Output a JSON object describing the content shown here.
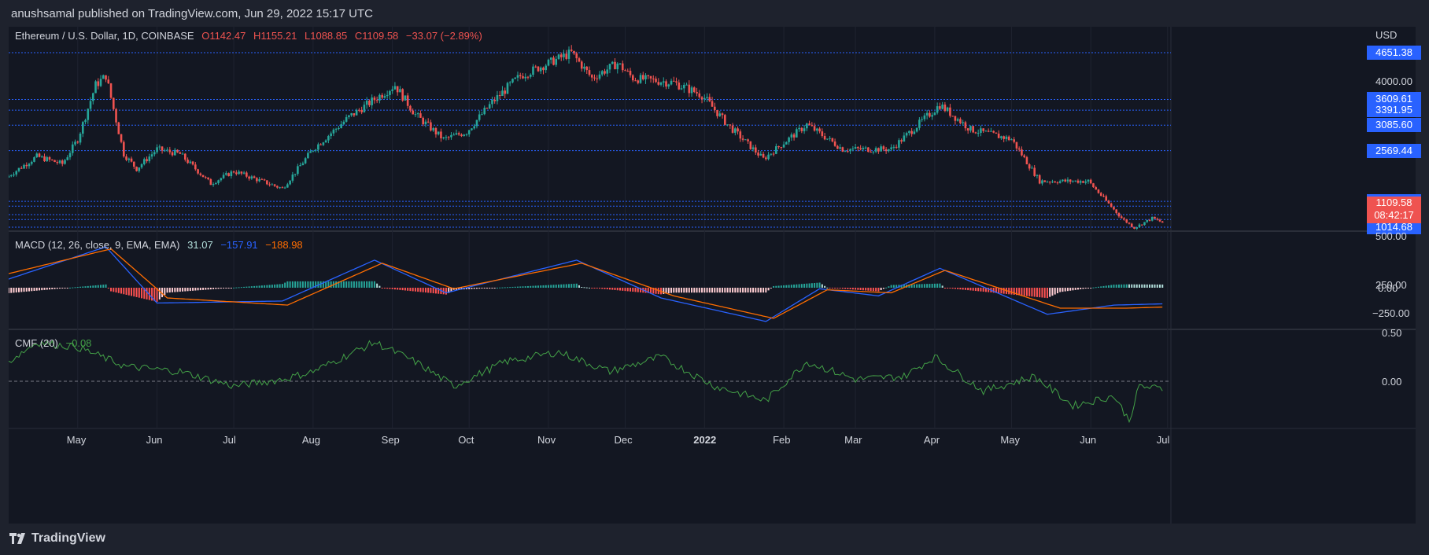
{
  "publisher": "anushsamal published on TradingView.com, Jun 29, 2022 15:17 UTC",
  "brand": "TradingView",
  "currency": "USD",
  "legend": {
    "symbol": "Ethereum / U.S. Dollar, 1D, COINBASE",
    "open": "O1142.47",
    "high": "H1155.21",
    "low": "L1088.85",
    "close": "C1109.58",
    "change": "−33.07 (−2.89%)"
  },
  "macd_legend": {
    "name": "MACD (12, 26, close, 9, EMA, EMA)",
    "hist": "31.07",
    "macd": "−157.91",
    "signal": "−188.98"
  },
  "cmf_legend": {
    "name": "CMF (20)",
    "value": "−0.08"
  },
  "price_levels": [
    "4651.38",
    "3609.61",
    "3391.95",
    "3085.60",
    "2569.44",
    "1540.14",
    "1441.81",
    "1271.02",
    "1169.94",
    "1014.68"
  ],
  "price_axis": {
    "label_4000": "4000.00"
  },
  "last_price": {
    "value": "1109.58",
    "countdown": "08:42:17"
  },
  "macd_axis": [
    "500.00",
    "250.00",
    "0.00",
    "−250.00"
  ],
  "cmf_axis": [
    "0.50",
    "0.00"
  ],
  "x_ticks": [
    "May",
    "Jun",
    "Jul",
    "Aug",
    "Sep",
    "Oct",
    "Nov",
    "Dec",
    "2022",
    "Feb",
    "Mar",
    "Apr",
    "May",
    "Jun",
    "Jul"
  ],
  "colors": {
    "up": "#26a69a",
    "down": "#ef5350",
    "macd": "#2962ff",
    "signal": "#ff6d00",
    "cmf": "#43a047",
    "levels": "#2962ff",
    "bg": "#131722",
    "frame": "#1e222d"
  },
  "chart_data": {
    "type": "candlestick",
    "title": "Ethereum / U.S. Dollar, 1D, COINBASE",
    "ylabel": "USD",
    "x_range": [
      "2021-04-04",
      "2022-07-02"
    ],
    "price_approx": [
      [
        "2021-04-01",
        1950
      ],
      [
        "2021-04-15",
        2450
      ],
      [
        "2021-04-25",
        2300
      ],
      [
        "2021-05-01",
        2800
      ],
      [
        "2021-05-08",
        3900
      ],
      [
        "2021-05-12",
        4100
      ],
      [
        "2021-05-19",
        2500
      ],
      [
        "2021-05-24",
        2200
      ],
      [
        "2021-06-01",
        2600
      ],
      [
        "2021-06-10",
        2500
      ],
      [
        "2021-06-22",
        1900
      ],
      [
        "2021-07-01",
        2150
      ],
      [
        "2021-07-20",
        1800
      ],
      [
        "2021-08-01",
        2600
      ],
      [
        "2021-08-15",
        3250
      ],
      [
        "2021-09-02",
        3900
      ],
      [
        "2021-09-10",
        3300
      ],
      [
        "2021-09-21",
        2800
      ],
      [
        "2021-09-30",
        2950
      ],
      [
        "2021-10-10",
        3550
      ],
      [
        "2021-10-21",
        4100
      ],
      [
        "2021-11-10",
        4651
      ],
      [
        "2021-11-18",
        4050
      ],
      [
        "2021-11-28",
        4400
      ],
      [
        "2021-12-04",
        4050
      ],
      [
        "2021-12-20",
        3950
      ],
      [
        "2021-12-31",
        3700
      ],
      [
        "2022-01-10",
        3100
      ],
      [
        "2022-01-24",
        2400
      ],
      [
        "2022-02-10",
        3100
      ],
      [
        "2022-02-24",
        2600
      ],
      [
        "2022-03-15",
        2600
      ],
      [
        "2022-04-03",
        3500
      ],
      [
        "2022-04-15",
        3000
      ],
      [
        "2022-05-01",
        2800
      ],
      [
        "2022-05-12",
        1950
      ],
      [
        "2022-05-31",
        1950
      ],
      [
        "2022-06-13",
        1200
      ],
      [
        "2022-06-18",
        1000
      ],
      [
        "2022-06-25",
        1200
      ],
      [
        "2022-06-29",
        1109.58
      ]
    ],
    "macd_approx": [
      [
        "2021-04-01",
        60
      ],
      [
        "2021-05-12",
        400
      ],
      [
        "2021-06-01",
        -150
      ],
      [
        "2021-07-20",
        -130
      ],
      [
        "2021-08-25",
        270
      ],
      [
        "2021-09-22",
        -50
      ],
      [
        "2021-11-12",
        270
      ],
      [
        "2021-12-15",
        -100
      ],
      [
        "2022-01-25",
        -330
      ],
      [
        "2022-02-15",
        -10
      ],
      [
        "2022-03-10",
        -80
      ],
      [
        "2022-04-03",
        190
      ],
      [
        "2022-05-15",
        -260
      ],
      [
        "2022-06-10",
        -170
      ],
      [
        "2022-06-29",
        -157.91
      ]
    ],
    "signal_approx": [
      [
        "2021-04-01",
        120
      ],
      [
        "2021-05-14",
        380
      ],
      [
        "2021-06-05",
        -100
      ],
      [
        "2021-07-22",
        -170
      ],
      [
        "2021-08-28",
        240
      ],
      [
        "2021-09-25",
        -10
      ],
      [
        "2021-11-14",
        240
      ],
      [
        "2021-12-20",
        -80
      ],
      [
        "2022-01-28",
        -300
      ],
      [
        "2022-02-18",
        -20
      ],
      [
        "2022-03-15",
        -50
      ],
      [
        "2022-04-05",
        170
      ],
      [
        "2022-05-20",
        -200
      ],
      [
        "2022-06-15",
        -200
      ],
      [
        "2022-06-29",
        -188.98
      ]
    ],
    "cmf_approx": [
      [
        "2021-04-01",
        0.15
      ],
      [
        "2021-04-15",
        0.4
      ],
      [
        "2021-05-01",
        0.35
      ],
      [
        "2021-05-20",
        0.15
      ],
      [
        "2021-06-10",
        0.1
      ],
      [
        "2021-07-01",
        -0.05
      ],
      [
        "2021-07-20",
        0.02
      ],
      [
        "2021-08-01",
        0.1
      ],
      [
        "2021-08-25",
        0.4
      ],
      [
        "2021-09-10",
        0.2
      ],
      [
        "2021-09-25",
        -0.05
      ],
      [
        "2021-10-15",
        0.2
      ],
      [
        "2021-11-05",
        0.3
      ],
      [
        "2021-11-25",
        0.1
      ],
      [
        "2021-12-15",
        0.25
      ],
      [
        "2022-01-05",
        -0.05
      ],
      [
        "2022-01-25",
        -0.2
      ],
      [
        "2022-02-10",
        0.2
      ],
      [
        "2022-03-01",
        0.02
      ],
      [
        "2022-03-20",
        0.05
      ],
      [
        "2022-04-01",
        0.25
      ],
      [
        "2022-04-20",
        -0.1
      ],
      [
        "2022-05-10",
        0.05
      ],
      [
        "2022-05-25",
        -0.25
      ],
      [
        "2022-06-10",
        -0.15
      ],
      [
        "2022-06-16",
        -0.4
      ],
      [
        "2022-06-20",
        -0.05
      ],
      [
        "2022-06-29",
        -0.08
      ]
    ],
    "price_ylim": [
      900,
      4800
    ],
    "macd_ylim": [
      -400,
      500
    ],
    "cmf_ylim": [
      -0.5,
      0.5
    ],
    "grid": true
  }
}
